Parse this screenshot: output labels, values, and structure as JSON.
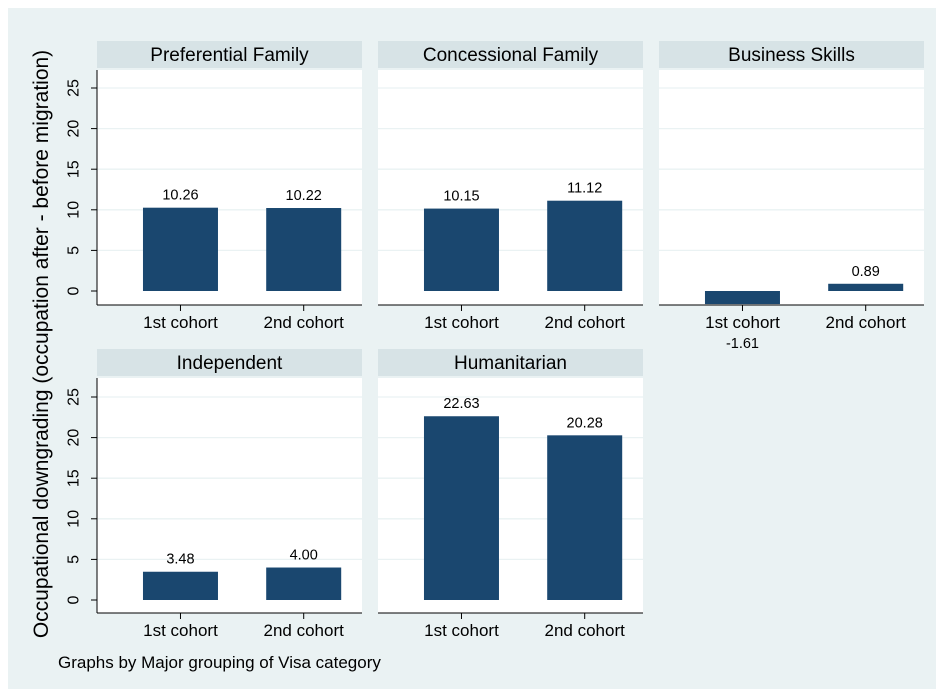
{
  "chart_data": {
    "type": "bar",
    "ylabel": "Occupational downgrading (occupation after - before migration)",
    "note": "Graphs by Major grouping of Visa category",
    "categories": [
      "1st cohort",
      "2nd cohort"
    ],
    "yticks": [
      0,
      5,
      10,
      15,
      20,
      25
    ],
    "ylim": [
      -2.6,
      27.5
    ],
    "grid": true,
    "bar_color": "#1a476f",
    "panels": [
      {
        "title": "Preferential Family",
        "values": [
          10.26,
          10.22
        ],
        "labels": [
          "10.26",
          "10.22"
        ]
      },
      {
        "title": "Concessional Family",
        "values": [
          10.15,
          11.12
        ],
        "labels": [
          "10.15",
          "11.12"
        ]
      },
      {
        "title": "Business Skills",
        "values": [
          -1.61,
          0.89
        ],
        "labels": [
          "-1.61",
          "0.89"
        ]
      },
      {
        "title": "Independent",
        "values": [
          3.48,
          4.0
        ],
        "labels": [
          "3.48",
          "4.00"
        ]
      },
      {
        "title": "Humanitarian",
        "values": [
          22.63,
          20.28
        ],
        "labels": [
          "22.63",
          "20.28"
        ]
      }
    ]
  }
}
